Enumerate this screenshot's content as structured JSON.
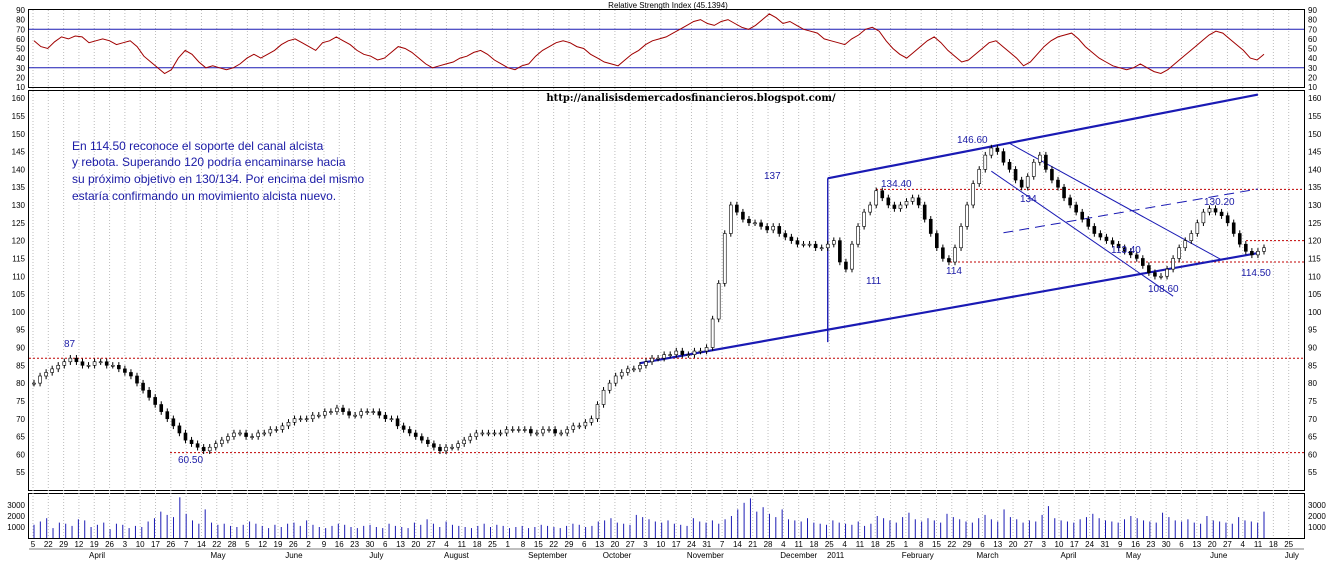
{
  "colors": {
    "channel": "#1a1ab4",
    "rsi_line": "#a00000",
    "candles": "#000000",
    "dashed_levels": "#c00000",
    "annotations": "#1a1aa6",
    "grid": "#bdbdbd"
  },
  "chart_data": [
    {
      "type": "line",
      "title": "Relative Strength Index (45.1394)",
      "ylim": [
        10,
        90
      ],
      "y_ticks": [
        10,
        20,
        30,
        40,
        50,
        60,
        70,
        80,
        90
      ],
      "y_tick_labels": [
        "10",
        "20",
        "30",
        "40",
        "50",
        "60",
        "70",
        "80",
        "90"
      ],
      "levels": [
        30,
        70
      ],
      "series": [
        {
          "values": [
            58,
            52,
            50,
            57,
            62,
            60,
            63,
            62,
            56,
            58,
            60,
            58,
            54,
            56,
            58,
            52,
            42,
            36,
            30,
            24,
            28,
            40,
            48,
            44,
            36,
            30,
            32,
            30,
            28,
            30,
            34,
            40,
            44,
            40,
            44,
            48,
            54,
            58,
            60,
            56,
            52,
            48,
            56,
            58,
            62,
            58,
            54,
            48,
            44,
            42,
            38,
            40,
            46,
            52,
            50,
            46,
            40,
            34,
            30,
            32,
            34,
            36,
            40,
            42,
            46,
            48,
            44,
            38,
            34,
            30,
            28,
            32,
            34,
            42,
            48,
            52,
            56,
            58,
            56,
            52,
            50,
            44,
            40,
            36,
            34,
            32,
            38,
            44,
            48,
            54,
            58,
            60,
            62,
            66,
            70,
            74,
            78,
            80,
            76,
            74,
            78,
            80,
            76,
            72,
            70,
            74,
            80,
            86,
            82,
            76,
            78,
            74,
            70,
            68,
            66,
            60,
            58,
            56,
            54,
            60,
            64,
            70,
            72,
            68,
            58,
            50,
            44,
            40,
            46,
            52,
            58,
            62,
            56,
            48,
            42,
            36,
            38,
            44,
            50,
            56,
            58,
            52,
            46,
            40,
            32,
            36,
            44,
            52,
            58,
            62,
            64,
            66,
            60,
            52,
            46,
            40,
            36,
            32,
            30,
            28,
            30,
            34,
            30,
            26,
            24,
            28,
            34,
            40,
            46,
            52,
            58,
            64,
            68,
            66,
            60,
            54,
            48,
            40,
            38,
            44
          ]
        }
      ]
    },
    {
      "type": "candlestick",
      "subtitle": "http://analisisdemercadosfinancieros.blogspot.com/",
      "ylim": [
        50,
        162
      ],
      "y_ticks": [
        55,
        60,
        65,
        70,
        75,
        80,
        85,
        90,
        95,
        100,
        105,
        110,
        115,
        120,
        125,
        130,
        135,
        140,
        145,
        150,
        155,
        160
      ],
      "y_tick_labels": [
        "55",
        "60",
        "65",
        "70",
        "75",
        "80",
        "85",
        "90",
        "95",
        "100",
        "105",
        "110",
        "115",
        "120",
        "125",
        "130",
        "135",
        "140",
        "145",
        "150",
        "155",
        "160"
      ],
      "closes": [
        80,
        82,
        83,
        84,
        85,
        86,
        87,
        86,
        85,
        85,
        86,
        86,
        85,
        85,
        84,
        83,
        82,
        80,
        78,
        76,
        74,
        72,
        70,
        68,
        66,
        64,
        63,
        62,
        61,
        62,
        63,
        64,
        65,
        66,
        66,
        65,
        65,
        66,
        66,
        67,
        67,
        68,
        69,
        70,
        70,
        70,
        71,
        71,
        72,
        72,
        73,
        72,
        71,
        71,
        72,
        72,
        72,
        71,
        70,
        70,
        68,
        67,
        66,
        65,
        64,
        63,
        62,
        61,
        62,
        62,
        63,
        64,
        65,
        66,
        66,
        66,
        66,
        66,
        67,
        67,
        67,
        67,
        66,
        66,
        67,
        67,
        66,
        66,
        67,
        68,
        68,
        69,
        70,
        74,
        78,
        80,
        82,
        83,
        84,
        84,
        85,
        86,
        87,
        87,
        88,
        88,
        89,
        88,
        88,
        89,
        89,
        90,
        98,
        108,
        122,
        130,
        128,
        126,
        125,
        125,
        124,
        123,
        124,
        122,
        121,
        120,
        119,
        119,
        119,
        118,
        118,
        119,
        120,
        114,
        112,
        119,
        124,
        128,
        130,
        134,
        132,
        130,
        129,
        130,
        131,
        132,
        130,
        126,
        122,
        118,
        115,
        114,
        118,
        124,
        130,
        136,
        140,
        144,
        146,
        145,
        142,
        140,
        137,
        135,
        138,
        142,
        144,
        140,
        137,
        135,
        132,
        130,
        128,
        126,
        124,
        122,
        121,
        120,
        119,
        118,
        117,
        116,
        115,
        113,
        111,
        110,
        110,
        112,
        115,
        118,
        120,
        122,
        125,
        128,
        129,
        128,
        127,
        125,
        122,
        119,
        117,
        116,
        117,
        118
      ],
      "levels": [
        60.5,
        87,
        114,
        120,
        134.4
      ],
      "channel_lines": [
        {
          "from": [
            0,
            0
          ],
          "to": [
            0,
            0
          ]
        }
      ],
      "annotations": [
        "87",
        "60.50",
        "137",
        "134.40",
        "111",
        "114",
        "146.60",
        "134",
        "113.40",
        "108.60",
        "130.20",
        "114.50"
      ],
      "note": [
        "En 114.50 reconoce el soporte del canal alcista",
        "y rebota. Superando 120 podría encaminarse hacia",
        "su próximo objetivo en 130/134. Por encima del mismo",
        "estaría confirmando un movimiento alcista nuevo."
      ]
    },
    {
      "type": "bar",
      "ylim": [
        0,
        4000
      ],
      "y_ticks": [
        1000,
        2000,
        3000
      ],
      "y_tick_labels": [
        "1000",
        "2000",
        "3000"
      ],
      "values": [
        1200,
        1500,
        1800,
        900,
        1400,
        1300,
        1100,
        1700,
        1600,
        1000,
        1200,
        1400,
        800,
        1300,
        1200,
        900,
        1100,
        1000,
        1500,
        1800,
        2400,
        2100,
        1900,
        3700,
        2200,
        1600,
        1300,
        2600,
        1400,
        1200,
        1300,
        1100,
        1000,
        1200,
        1500,
        1300,
        1100,
        900,
        1200,
        1000,
        1300,
        1400,
        1100,
        1600,
        1200,
        1000,
        900,
        1100,
        1300,
        1200,
        1000,
        900,
        1100,
        1200,
        1000,
        900,
        1300,
        1100,
        1000,
        900,
        1400,
        1200,
        1700,
        1300,
        1000,
        1500,
        1200,
        1100,
        1000,
        900,
        1100,
        1300,
        1000,
        1200,
        1100,
        900,
        1000,
        1100,
        900,
        1000,
        1200,
        1100,
        1000,
        900,
        1100,
        1300,
        1200,
        1000,
        1100,
        1500,
        1600,
        1800,
        1400,
        1300,
        1200,
        2100,
        1900,
        1700,
        1500,
        1400,
        1600,
        1300,
        1200,
        1100,
        1800,
        1500,
        1400,
        1600,
        1300,
        1700,
        2000,
        2600,
        3200,
        3600,
        2400,
        2800,
        2200,
        1900,
        2600,
        1700,
        1600,
        1500,
        1800,
        1400,
        1300,
        1200,
        1600,
        1400,
        1300,
        1200,
        1500,
        1100,
        1300,
        2000,
        1800,
        1600,
        1400,
        1900,
        2300,
        1700,
        1500,
        1800,
        1600,
        1400,
        2200,
        1900,
        1700,
        1500,
        1400,
        1800,
        2100,
        1700,
        1500,
        2600,
        1900,
        1700,
        1400,
        1600,
        1500,
        2100,
        2900,
        1800,
        1600,
        1500,
        1400,
        1700,
        1900,
        2200,
        1800,
        1600,
        1500,
        1400,
        1700,
        2000,
        1800,
        1600,
        1500,
        1400,
        2300,
        1900,
        1600,
        1500,
        1700,
        1400,
        1300,
        2000,
        1600,
        1500,
        1400,
        1300,
        1900,
        1600,
        1500,
        1400,
        2400
      ]
    }
  ],
  "x_axis": {
    "day_labels": [
      "5",
      "22",
      "29",
      "12",
      "19",
      "26",
      "3",
      "10",
      "17",
      "26",
      "7",
      "14",
      "22",
      "28",
      "5",
      "12",
      "19",
      "26",
      "2",
      "9",
      "16",
      "23",
      "30",
      "6",
      "13",
      "20",
      "27",
      "4",
      "11",
      "18",
      "25",
      "1",
      "8",
      "15",
      "22",
      "29",
      "6",
      "13",
      "20",
      "27",
      "3",
      "10",
      "17",
      "24",
      "31",
      "7",
      "14",
      "21",
      "28",
      "4",
      "11",
      "18",
      "25",
      "4",
      "11",
      "18",
      "25",
      "1",
      "8",
      "15",
      "22",
      "29",
      "6",
      "13",
      "20",
      "27",
      "3",
      "10",
      "17",
      "24",
      "31",
      "9",
      "16",
      "23",
      "30",
      "6",
      "13",
      "20",
      "27",
      "4",
      "11",
      "18",
      "25"
    ],
    "month_labels": [
      "April",
      "May",
      "June",
      "July",
      "August",
      "September",
      "October",
      "November",
      "December",
      "2011",
      "February",
      "March",
      "April",
      "May",
      "June",
      "July"
    ]
  }
}
